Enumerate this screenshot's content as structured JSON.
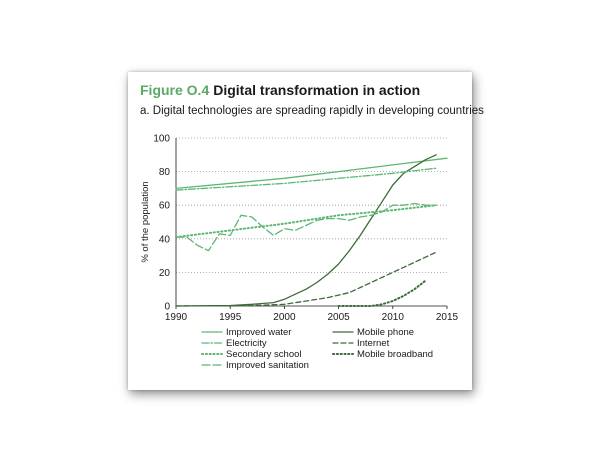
{
  "figure": {
    "label": "Figure O.4",
    "title": "Digital transformation in action",
    "subtitle": "a. Digital technologies are spreading rapidly in developing countries"
  },
  "chart_data": {
    "type": "line",
    "ylabel": "% of the population",
    "xlabel": "",
    "xlim": [
      1990,
      2015
    ],
    "ylim": [
      0,
      100
    ],
    "xticks": [
      1990,
      1995,
      2000,
      2005,
      2010,
      2015
    ],
    "yticks": [
      0,
      20,
      40,
      60,
      80,
      100
    ],
    "grid": "horizontal dotted",
    "legend_position": "bottom",
    "colors": {
      "light_green": "#5cb872",
      "dark_green": "#3d6b3a",
      "grid": "#9a9a9a"
    },
    "series": [
      {
        "name": "Improved water",
        "style": "solid",
        "color": "light_green",
        "x": [
          1990,
          2000,
          2010,
          2015
        ],
        "y": [
          70,
          76,
          84,
          88
        ]
      },
      {
        "name": "Mobile phone",
        "style": "solid",
        "color": "dark_green",
        "x": [
          1990,
          1995,
          1997,
          1999,
          2000,
          2001,
          2002,
          2003,
          2004,
          2005,
          2006,
          2007,
          2008,
          2009,
          2010,
          2011,
          2012,
          2013,
          2014
        ],
        "y": [
          0,
          0.3,
          1,
          2,
          4,
          7,
          10,
          14,
          19,
          25,
          33,
          42,
          52,
          62,
          72,
          79,
          83,
          87,
          90
        ]
      },
      {
        "name": "Electricity",
        "style": "dashdot",
        "color": "light_green",
        "x": [
          1990,
          2000,
          2010,
          2014
        ],
        "y": [
          69,
          73,
          79,
          82
        ]
      },
      {
        "name": "Internet",
        "style": "dashed",
        "color": "dark_green",
        "x": [
          1990,
          1995,
          1998,
          2000,
          2002,
          2004,
          2006,
          2008,
          2010,
          2012,
          2014
        ],
        "y": [
          0,
          0.2,
          0.5,
          1,
          3,
          5,
          8,
          14,
          20,
          26,
          32
        ]
      },
      {
        "name": "Secondary school",
        "style": "dotted",
        "color": "light_green",
        "x": [
          1990,
          1995,
          2000,
          2005,
          2010,
          2014
        ],
        "y": [
          41,
          45,
          49,
          54,
          57,
          60
        ]
      },
      {
        "name": "Mobile broadband",
        "style": "dotted",
        "color": "dark_green",
        "x": [
          2005,
          2008,
          2009,
          2010,
          2011,
          2012,
          2013
        ],
        "y": [
          0,
          0,
          1,
          3,
          6,
          10,
          15
        ]
      },
      {
        "name": "Improved sanitation",
        "style": "longdash",
        "color": "light_green",
        "x": [
          1990,
          1991,
          1992,
          1993,
          1994,
          1995,
          1996,
          1997,
          1998,
          1999,
          2000,
          2001,
          2002,
          2003,
          2004,
          2005,
          2006,
          2007,
          2008,
          2009,
          2010,
          2011,
          2012,
          2013,
          2014
        ],
        "y": [
          41,
          41,
          36,
          33,
          43,
          42,
          54,
          53,
          47,
          42,
          46,
          45,
          48,
          51,
          52,
          52,
          51,
          53,
          54,
          56,
          60,
          60,
          61,
          60,
          60
        ]
      }
    ]
  }
}
